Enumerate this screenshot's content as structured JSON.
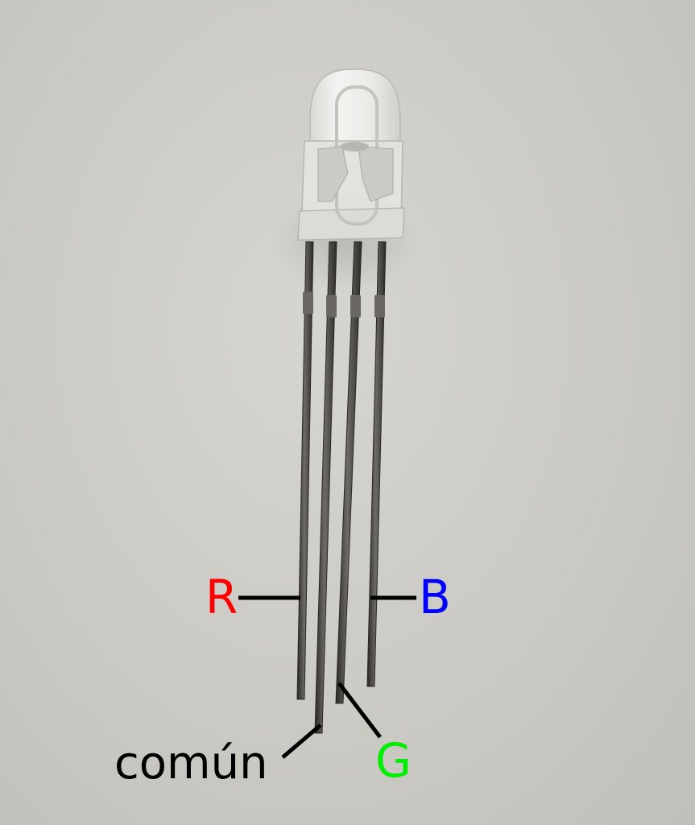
{
  "labels": {
    "red": {
      "text": "R",
      "color": "#ff0000"
    },
    "blue": {
      "text": "B",
      "color": "#0000ff"
    },
    "green": {
      "text": "G",
      "color": "#00ee00"
    },
    "common": {
      "text": "común",
      "color": "#000000"
    }
  },
  "colors": {
    "background": "#cfcec9",
    "lead": "#3d3a38",
    "pointer_line": "#000000"
  }
}
